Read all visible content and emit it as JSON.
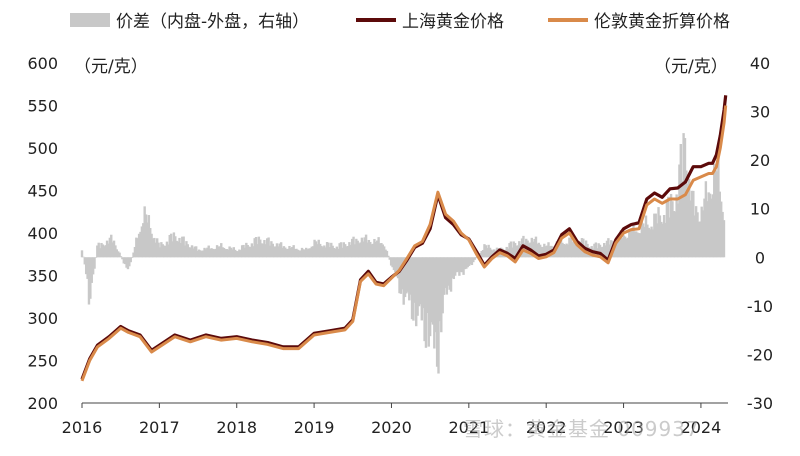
{
  "legend": {
    "spread": "价差（内盘-外盘，右轴）",
    "shanghai": "上海黄金价格",
    "london": "伦敦黄金折算价格"
  },
  "units": {
    "left": "（元/克）",
    "right": "（元/克）"
  },
  "watermark": "雪球：黄金基金 009937",
  "colors": {
    "shanghai": "#5c0a0a",
    "london": "#d98a4a",
    "spread": "#c8c8c8"
  },
  "chart_data": {
    "type": "line",
    "title": "",
    "left_axis": {
      "ylim": [
        200,
        600
      ],
      "ticks": [
        200,
        250,
        300,
        350,
        400,
        450,
        500,
        550,
        600
      ]
    },
    "right_axis": {
      "ylim": [
        -30,
        40
      ],
      "ticks": [
        -30,
        -20,
        -10,
        0,
        10,
        20,
        30,
        40
      ]
    },
    "x_axis": {
      "xlim": [
        2016.0,
        2024.35
      ],
      "ticks": [
        "2016",
        "2017",
        "2018",
        "2019",
        "2020",
        "2021",
        "2022",
        "2023",
        "2024"
      ]
    },
    "grid": false,
    "legend_position": "top",
    "series": [
      {
        "name": "上海黄金价格",
        "axis": "left",
        "x": [
          2016.0,
          2016.1,
          2016.2,
          2016.35,
          2016.5,
          2016.6,
          2016.75,
          2016.9,
          2017.0,
          2017.2,
          2017.4,
          2017.6,
          2017.8,
          2018.0,
          2018.2,
          2018.4,
          2018.6,
          2018.8,
          2019.0,
          2019.2,
          2019.4,
          2019.5,
          2019.6,
          2019.7,
          2019.8,
          2019.9,
          2020.0,
          2020.1,
          2020.2,
          2020.3,
          2020.4,
          2020.5,
          2020.6,
          2020.7,
          2020.8,
          2020.9,
          2021.0,
          2021.1,
          2021.2,
          2021.3,
          2021.4,
          2021.5,
          2021.6,
          2021.7,
          2021.8,
          2021.9,
          2022.0,
          2022.1,
          2022.2,
          2022.3,
          2022.4,
          2022.5,
          2022.6,
          2022.7,
          2022.8,
          2022.9,
          2023.0,
          2023.1,
          2023.2,
          2023.3,
          2023.4,
          2023.5,
          2023.6,
          2023.7,
          2023.8,
          2023.9,
          2024.0,
          2024.1,
          2024.15,
          2024.2,
          2024.25,
          2024.3,
          2024.32
        ],
        "values": [
          228,
          252,
          268,
          278,
          290,
          285,
          280,
          262,
          268,
          280,
          274,
          280,
          276,
          278,
          274,
          271,
          266,
          266,
          282,
          285,
          288,
          298,
          345,
          355,
          342,
          340,
          348,
          355,
          368,
          383,
          388,
          405,
          445,
          418,
          410,
          398,
          393,
          378,
          362,
          372,
          380,
          376,
          370,
          385,
          380,
          373,
          375,
          380,
          398,
          405,
          390,
          382,
          378,
          376,
          368,
          392,
          405,
          410,
          412,
          440,
          447,
          442,
          452,
          453,
          460,
          478,
          478,
          482,
          482,
          492,
          515,
          545,
          562
        ]
      },
      {
        "name": "伦敦黄金折算价格",
        "axis": "left",
        "x": [
          2016.0,
          2016.1,
          2016.2,
          2016.35,
          2016.5,
          2016.6,
          2016.75,
          2016.9,
          2017.0,
          2017.2,
          2017.4,
          2017.6,
          2017.8,
          2018.0,
          2018.2,
          2018.4,
          2018.6,
          2018.8,
          2019.0,
          2019.2,
          2019.4,
          2019.5,
          2019.6,
          2019.7,
          2019.8,
          2019.9,
          2020.0,
          2020.1,
          2020.2,
          2020.3,
          2020.4,
          2020.5,
          2020.6,
          2020.7,
          2020.8,
          2020.9,
          2021.0,
          2021.1,
          2021.2,
          2021.3,
          2021.4,
          2021.5,
          2021.6,
          2021.7,
          2021.8,
          2021.9,
          2022.0,
          2022.1,
          2022.2,
          2022.3,
          2022.4,
          2022.5,
          2022.6,
          2022.7,
          2022.8,
          2022.9,
          2023.0,
          2023.1,
          2023.2,
          2023.3,
          2023.4,
          2023.5,
          2023.6,
          2023.7,
          2023.8,
          2023.9,
          2024.0,
          2024.1,
          2024.15,
          2024.2,
          2024.25,
          2024.3,
          2024.32
        ],
        "values": [
          226,
          250,
          266,
          276,
          288,
          283,
          278,
          260,
          266,
          278,
          272,
          278,
          274,
          276,
          272,
          269,
          264,
          264,
          280,
          283,
          286,
          296,
          343,
          352,
          340,
          338,
          347,
          356,
          370,
          385,
          390,
          410,
          448,
          422,
          414,
          400,
          392,
          375,
          360,
          370,
          377,
          373,
          366,
          380,
          376,
          370,
          372,
          377,
          394,
          400,
          386,
          378,
          374,
          372,
          365,
          388,
          400,
          404,
          405,
          433,
          440,
          435,
          440,
          440,
          445,
          462,
          466,
          470,
          470,
          478,
          500,
          530,
          550
        ]
      },
      {
        "name": "价差（内盘-外盘，右轴）",
        "axis": "right",
        "kind": "bar",
        "x": [
          2016.0,
          2016.05,
          2016.1,
          2016.2,
          2016.4,
          2016.6,
          2016.8,
          2017.0,
          2017.2,
          2017.5,
          2017.8,
          2018.0,
          2018.3,
          2018.6,
          2018.9,
          2019.0,
          2019.3,
          2019.6,
          2019.9,
          2020.0,
          2020.1,
          2020.2,
          2020.3,
          2020.4,
          2020.5,
          2020.6,
          2020.65,
          2020.7,
          2020.8,
          2020.9,
          2021.0,
          2021.2,
          2021.4,
          2021.6,
          2021.8,
          2022.0,
          2022.2,
          2022.4,
          2022.6,
          2022.8,
          2023.0,
          2023.2,
          2023.4,
          2023.5,
          2023.6,
          2023.7,
          2023.8,
          2023.85,
          2023.9,
          2024.0,
          2024.1,
          2024.2,
          2024.3
        ],
        "values": [
          2,
          -3,
          -13,
          3,
          5,
          -4,
          12,
          3,
          6,
          2,
          3,
          2,
          5,
          3,
          2,
          4,
          3,
          5,
          4,
          -2,
          -8,
          -12,
          -15,
          -18,
          -22,
          -26,
          -18,
          -10,
          -6,
          -4,
          -3,
          3,
          2,
          4,
          5,
          3,
          4,
          5,
          3,
          4,
          6,
          8,
          10,
          12,
          14,
          18,
          34,
          20,
          14,
          12,
          18,
          24,
          12
        ]
      }
    ]
  }
}
